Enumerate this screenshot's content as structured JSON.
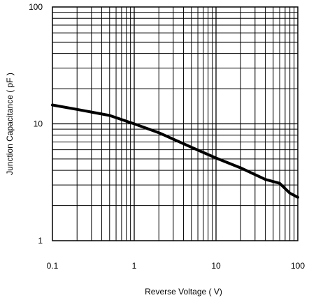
{
  "chart_data": {
    "type": "line",
    "title": "",
    "xlabel": "Reverse Voltage ( V)",
    "ylabel": "Junction Capacitance ( pF )",
    "xscale": "log",
    "yscale": "log",
    "xlim": [
      0.1,
      100
    ],
    "ylim": [
      1,
      100
    ],
    "grid": true,
    "legend": "none",
    "x_ticks": [
      "0.1",
      "1",
      "10",
      "100"
    ],
    "y_ticks": [
      "1",
      "10",
      "100"
    ],
    "series": [
      {
        "color": "#000000",
        "x": [
          0.1,
          0.2,
          0.5,
          1,
          2,
          5,
          10,
          20,
          40,
          60,
          80,
          100
        ],
        "y": [
          14.5,
          13.3,
          11.8,
          10.0,
          8.4,
          6.3,
          5.1,
          4.2,
          3.35,
          3.1,
          2.55,
          2.35
        ]
      }
    ]
  }
}
